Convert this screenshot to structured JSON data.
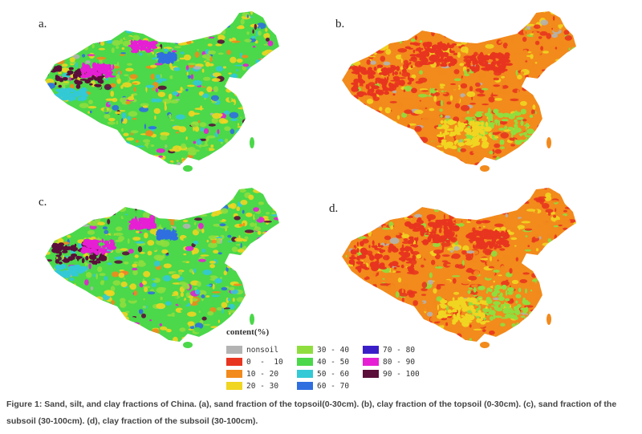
{
  "panels": [
    {
      "label": "a.",
      "scheme": "sand"
    },
    {
      "label": "b.",
      "scheme": "clay"
    },
    {
      "label": "c.",
      "scheme": "sand"
    },
    {
      "label": "d.",
      "scheme": "clay"
    }
  ],
  "legend": {
    "title": "content(%)",
    "items": [
      {
        "label": "nonsoil",
        "color": "#b3b3b3"
      },
      {
        "label": "0  -  10",
        "color": "#e8351f"
      },
      {
        "label": "10 - 20",
        "color": "#f28a1c"
      },
      {
        "label": "20 - 30",
        "color": "#f0d521"
      },
      {
        "label": "30 - 40",
        "color": "#8fde3e"
      },
      {
        "label": "40 - 50",
        "color": "#4bd84a"
      },
      {
        "label": "50 - 60",
        "color": "#33c9d6"
      },
      {
        "label": "60 - 70",
        "color": "#2f6fe0"
      },
      {
        "label": "70 - 80",
        "color": "#3a1fc8"
      },
      {
        "label": "80 - 90",
        "color": "#e61fd4"
      },
      {
        "label": "90 - 100",
        "color": "#5b0e3a"
      }
    ]
  },
  "caption": "Figure 1: Sand, silt, and clay fractions of China. (a), sand fraction of the topsoil(0-30cm). (b), clay fraction of the topsoil (0-30cm). (c), sand fraction of the subsoil (30-100cm). (d), clay fraction of the subsoil (30-100cm)."
}
